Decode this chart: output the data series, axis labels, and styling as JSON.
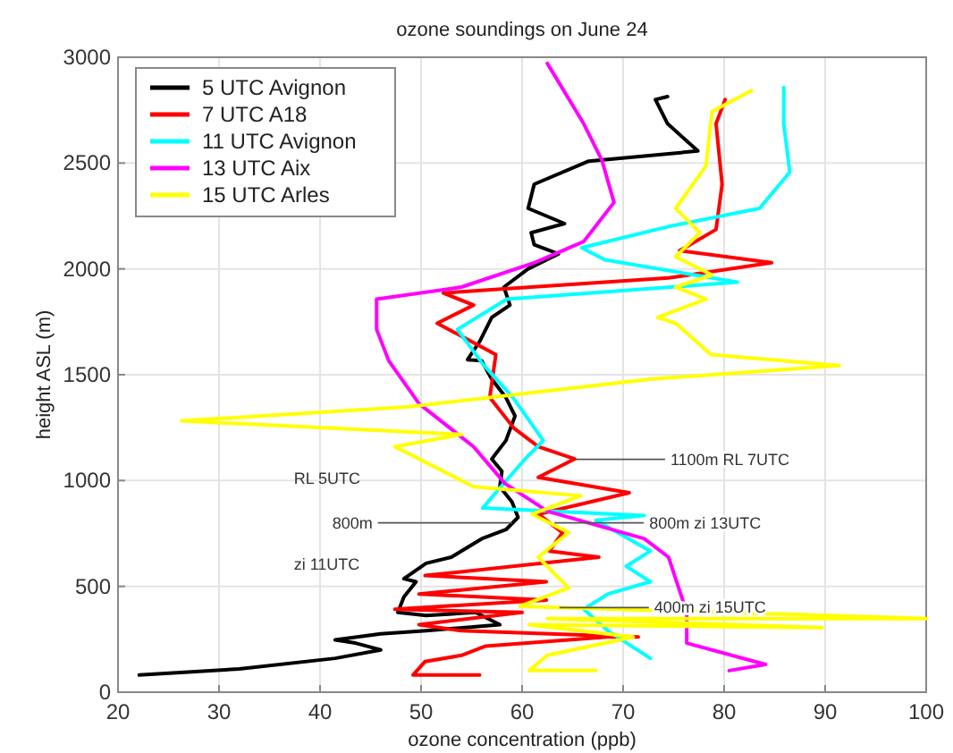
{
  "chart_data": {
    "type": "line",
    "title": "ozone soundings on June 24",
    "xlabel": "ozone concentration (ppb)",
    "ylabel": "height ASL (m)",
    "xlim": [
      20,
      100
    ],
    "xticks": [
      20,
      30,
      40,
      50,
      60,
      70,
      80,
      90,
      100
    ],
    "ylim": [
      0,
      3000
    ],
    "yticks": [
      0,
      500,
      1000,
      1500,
      2000,
      2500,
      3000
    ],
    "grid": true,
    "legend": "top left",
    "marker": "none",
    "line_style": "solid",
    "series": [
      {
        "name": "5 UTC Avignon",
        "color": "#000000",
        "x": [
          22.1,
          32,
          41.5,
          46,
          43.5,
          41.5,
          46,
          50.5,
          57.8,
          55.4,
          50.5,
          47.7,
          48.3,
          49.5,
          48.3,
          50.5,
          53,
          56,
          58.4,
          59.6,
          59,
          57.8,
          58,
          57,
          58.4,
          59.3,
          58.4,
          57,
          56,
          54.6,
          55.8,
          57,
          58.8,
          58.2,
          60.6,
          63.6,
          61.2,
          60.9,
          64.2,
          60.6,
          61.2,
          66.6,
          77.4,
          74.4,
          73.2,
          74.4
        ],
        "values": [
          81,
          110,
          160,
          200,
          232,
          247,
          276,
          290,
          319,
          377,
          362,
          377,
          450,
          522,
          536,
          609,
          638,
          725,
          768,
          826,
          899,
          971,
          1044,
          1102,
          1189,
          1305,
          1392,
          1479,
          1566,
          1571,
          1657,
          1771,
          1829,
          1914,
          2000,
          2071,
          2114,
          2171,
          2214,
          2286,
          2400,
          2509,
          2557,
          2686,
          2800,
          2814
        ]
      },
      {
        "name": "7 UTC A18",
        "color": "#ff0000",
        "x": [
          55.8,
          49.2,
          50.4,
          54,
          56.4,
          68.4,
          71.5,
          54,
          49.8,
          60,
          47.4,
          62.4,
          49.8,
          62.4,
          50.4,
          67.6,
          62.7,
          64,
          61.6,
          70.6,
          61.6,
          65.2,
          61.6,
          59.2,
          56.8,
          57.4,
          51.6,
          55.2,
          52.2,
          74.5,
          84.7,
          75.6,
          79.2,
          79.8,
          79.2,
          80.1
        ],
        "values": [
          81,
          81,
          145,
          174,
          218,
          261,
          261,
          290,
          319,
          377,
          392,
          435,
          464,
          522,
          551,
          638,
          667,
          754,
          841,
          942,
          1015,
          1102,
          1160,
          1247,
          1392,
          1595,
          1743,
          1829,
          1886,
          1957,
          2029,
          2086,
          2186,
          2400,
          2686,
          2800
        ]
      },
      {
        "name": "11 UTC Avignon",
        "color": "#00ffff",
        "x": [
          72.7,
          68.5,
          66.1,
          68.5,
          72.7,
          70.3,
          72.7,
          67.3,
          72.1,
          56.1,
          57.9,
          60.3,
          62.1,
          59.1,
          56.1,
          53.6,
          58.5,
          81.3,
          68.2,
          65.9,
          74.5,
          83.5,
          86.5,
          85.9,
          85.9
        ],
        "values": [
          160,
          290,
          392,
          464,
          522,
          595,
          667,
          812,
          835,
          870,
          971,
          1102,
          1189,
          1392,
          1551,
          1714,
          1857,
          1937,
          2043,
          2100,
          2200,
          2286,
          2457,
          2686,
          2857
        ]
      },
      {
        "name": "13 UTC Aix",
        "color": "#ff00ff",
        "x": [
          80.5,
          84.1,
          76.3,
          76.3,
          74.5,
          72.1,
          62.5,
          58.3,
          55.2,
          49.8,
          46.8,
          45.6,
          45.6,
          54,
          61.2,
          66.1,
          69.1,
          67.9,
          66.1,
          62.5
        ],
        "values": [
          102,
          131,
          232,
          377,
          638,
          725,
          855,
          986,
          1160,
          1363,
          1566,
          1714,
          1857,
          1914,
          2029,
          2129,
          2314,
          2514,
          2686,
          2971
        ]
      },
      {
        "name": "15 UTC Arles",
        "color": "#ffff00",
        "x": [
          67.3,
          60.7,
          62.5,
          71,
          60.7,
          89.7,
          62.5,
          100,
          59.8,
          64.6,
          61.6,
          64.6,
          61,
          65.8,
          55.2,
          47.4,
          54,
          26.3,
          48.6,
          72.7,
          91.4,
          78.7,
          75.2,
          73.4,
          78.2,
          75.2,
          78.8,
          75.2,
          77.6,
          75.2,
          78.2,
          78.8,
          82.7
        ],
        "values": [
          102,
          102,
          174,
          261,
          319,
          305,
          348,
          348,
          406,
          493,
          638,
          754,
          841,
          928,
          971,
          1160,
          1218,
          1282,
          1348,
          1479,
          1543,
          1595,
          1743,
          1771,
          1857,
          1914,
          1971,
          2057,
          2171,
          2286,
          2486,
          2743,
          2843
        ]
      }
    ],
    "annotations": [
      {
        "text": "1100m RL 7UTC",
        "x": 65.3,
        "y": 1100
      },
      "RL 5UTC",
      {
        "text": "800m",
        "x": 59,
        "y": 800
      },
      "zi 11UTC",
      {
        "text": "800m zi 13UTC",
        "x": 63.2,
        "y": 800
      },
      {
        "text": "400m zi 15UTC",
        "x": 63.7,
        "y": 400
      }
    ]
  }
}
